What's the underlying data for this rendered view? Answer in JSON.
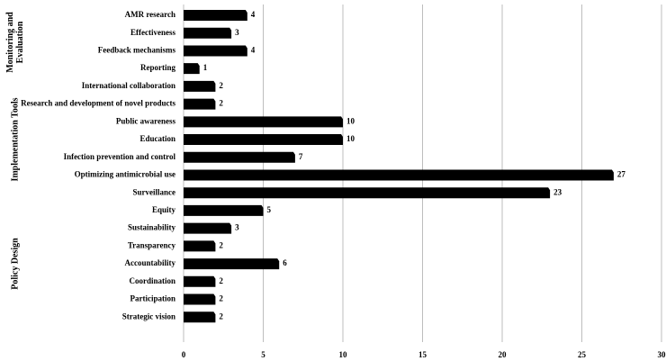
{
  "chart_data": {
    "type": "bar",
    "color": "#000000",
    "grid": true,
    "xlim": [
      0,
      30
    ],
    "xticks": [
      0,
      5,
      10,
      15,
      20,
      25,
      30
    ],
    "groups": [
      {
        "name": "Monitoring and Evaluation",
        "categories": [
          "AMR research",
          "Effectiveness",
          "Feedback mechanisms",
          "Reporting"
        ],
        "values": [
          4,
          3,
          4,
          1
        ]
      },
      {
        "name": "Implementation Tools",
        "categories": [
          "International collaboration",
          "Research and development of novel products",
          "Public awareness",
          "Education",
          "Infection prevention and control",
          "Optimizing antimicrobial use",
          "Surveillance"
        ],
        "values": [
          2,
          2,
          10,
          10,
          7,
          27,
          23
        ]
      },
      {
        "name": "Policy Design",
        "categories": [
          "Equity",
          "Sustainability",
          "Transparency",
          "Accountability",
          "Coordination",
          "Participation",
          "Strategic vision"
        ],
        "values": [
          5,
          3,
          2,
          6,
          2,
          2,
          2
        ]
      }
    ]
  }
}
